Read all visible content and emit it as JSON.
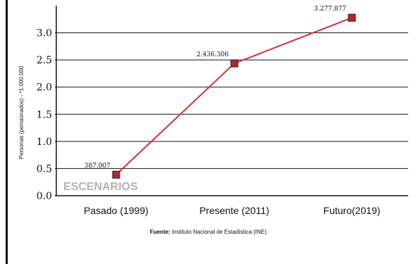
{
  "chart_data": {
    "type": "line",
    "categories": [
      "Pasado (1999)",
      "Presente (2011)",
      "Futuro(2019)"
    ],
    "values": [
      0.387,
      2.436,
      3.277
    ],
    "data_labels": [
      "387.007",
      "2.436.306",
      "3.277.877"
    ],
    "yticks": [
      0.0,
      0.5,
      1.0,
      1.5,
      2.0,
      2.5,
      3.0
    ],
    "ytick_labels": [
      "0.0",
      "0.5",
      "1.0",
      "1.5",
      "2.0",
      "2.5",
      "3.0"
    ],
    "ylim": [
      0,
      3.5
    ],
    "ylabel": "Personas (pensionados) - *1.000.000",
    "xlabel": "",
    "title": "",
    "grid": true,
    "line_color": "#d0303a",
    "marker_color": "#b8222c"
  },
  "watermark": "ESCENARIOS",
  "source": {
    "label": "Fuente:",
    "text": "Instituto Nacional de Estadística (INE)."
  }
}
